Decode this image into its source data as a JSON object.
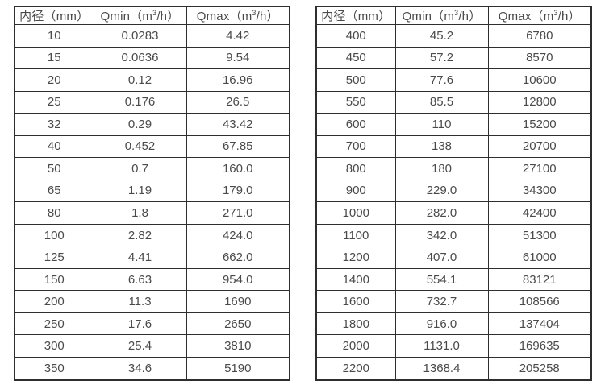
{
  "page": {
    "background": "#ffffff",
    "border_color": "#2e2e2e",
    "text_color": "#4a4a4a"
  },
  "tables": [
    {
      "name": "small-diameter-flow-table",
      "headers": {
        "diameter": "内径（mm）",
        "qmin": {
          "pre": "Qmin（m",
          "sup": "3",
          "post": "/h）"
        },
        "qmax": {
          "pre": "Qmax（m",
          "sup": "3",
          "post": "/h）"
        }
      },
      "rows": [
        [
          "10",
          "0.0283",
          "4.42"
        ],
        [
          "15",
          "0.0636",
          "9.54"
        ],
        [
          "20",
          "0.12",
          "16.96"
        ],
        [
          "25",
          "0.176",
          "26.5"
        ],
        [
          "32",
          "0.29",
          "43.42"
        ],
        [
          "40",
          "0.452",
          "67.85"
        ],
        [
          "50",
          "0.7",
          "160.0"
        ],
        [
          "65",
          "1.19",
          "179.0"
        ],
        [
          "80",
          "1.8",
          "271.0"
        ],
        [
          "100",
          "2.82",
          "424.0"
        ],
        [
          "125",
          "4.41",
          "662.0"
        ],
        [
          "150",
          "6.63",
          "954.0"
        ],
        [
          "200",
          "11.3",
          "1690"
        ],
        [
          "250",
          "17.6",
          "2650"
        ],
        [
          "300",
          "25.4",
          "3810"
        ],
        [
          "350",
          "34.6",
          "5190"
        ]
      ]
    },
    {
      "name": "large-diameter-flow-table",
      "headers": {
        "diameter": "内径（mm）",
        "qmin": {
          "pre": "Qmin（m",
          "sup": "3",
          "post": "/h）"
        },
        "qmax": {
          "pre": "Qmax（m",
          "sup": "3",
          "post": "/h）"
        }
      },
      "rows": [
        [
          "400",
          "45.2",
          "6780"
        ],
        [
          "450",
          "57.2",
          "8570"
        ],
        [
          "500",
          "77.6",
          "10600"
        ],
        [
          "550",
          "85.5",
          "12800"
        ],
        [
          "600",
          "110",
          "15200"
        ],
        [
          "700",
          "138",
          "20700"
        ],
        [
          "800",
          "180",
          "27100"
        ],
        [
          "900",
          "229.0",
          "34300"
        ],
        [
          "1000",
          "282.0",
          "42400"
        ],
        [
          "1100",
          "342.0",
          "51300"
        ],
        [
          "1200",
          "407.0",
          "61000"
        ],
        [
          "1400",
          "554.1",
          "83121"
        ],
        [
          "1600",
          "732.7",
          "108566"
        ],
        [
          "1800",
          "916.0",
          "137404"
        ],
        [
          "2000",
          "1131.0",
          "169635"
        ],
        [
          "2200",
          "1368.4",
          "205258"
        ]
      ]
    }
  ]
}
